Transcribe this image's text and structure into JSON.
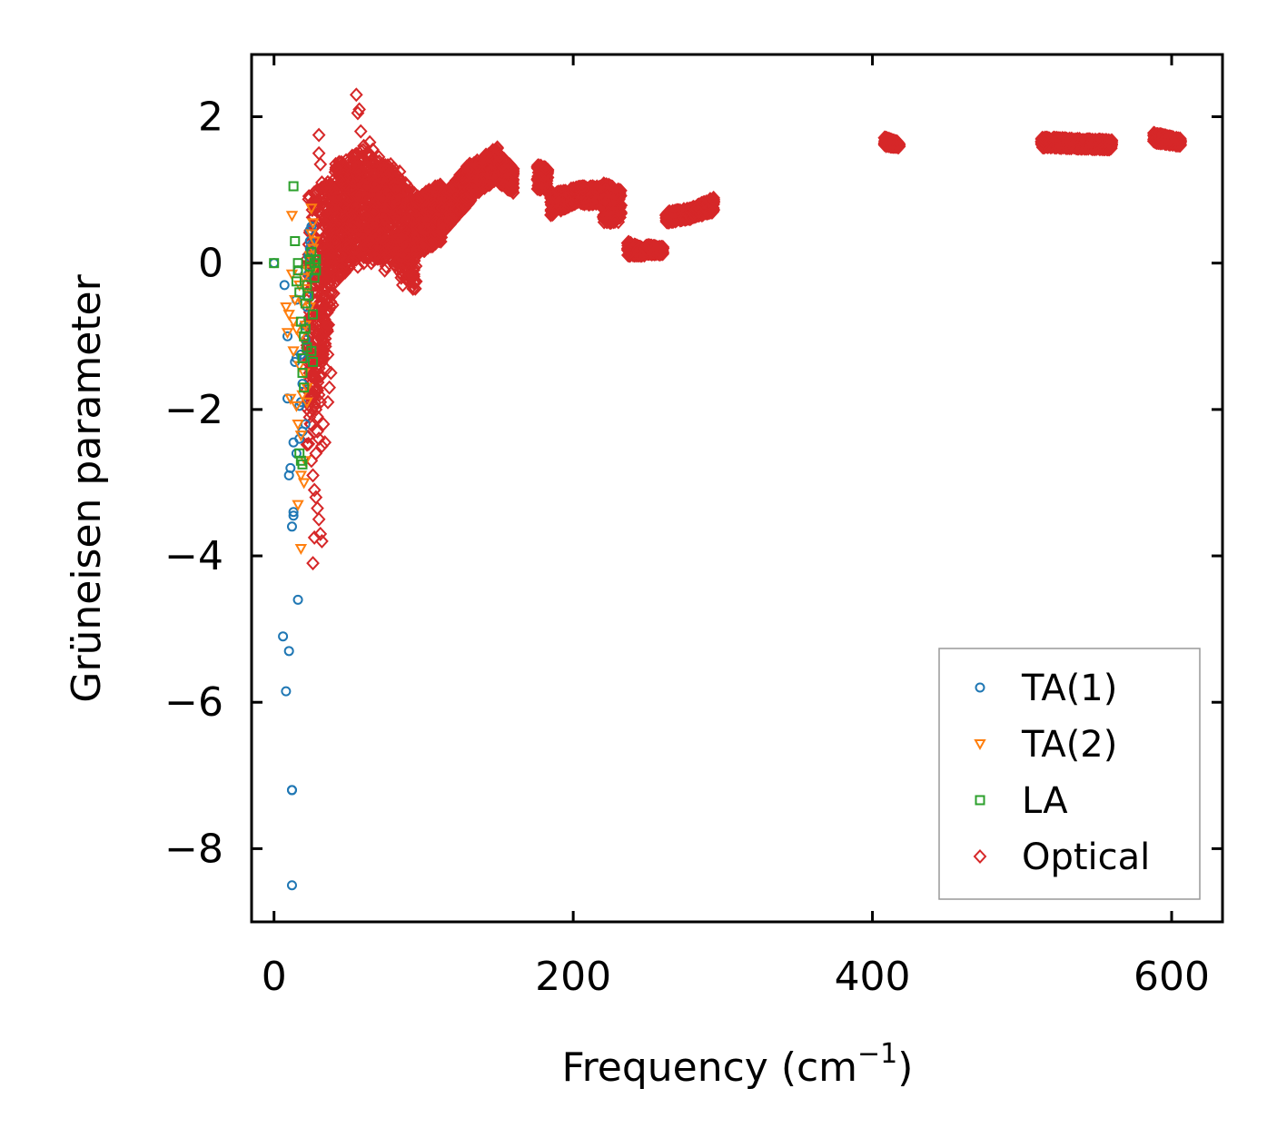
{
  "chart_data": {
    "type": "scatter",
    "title": "",
    "xlabel": "Frequency (cm",
    "xlabel_sup": "−1",
    "xlabel_end": ")",
    "ylabel": "Grüneisen parameter",
    "xlim": [
      -15,
      634
    ],
    "ylim": [
      -9.0,
      2.85
    ],
    "xticks": [
      0,
      200,
      400,
      600
    ],
    "xtick_labels": [
      "0",
      "200",
      "400",
      "600"
    ],
    "yticks": [
      2,
      0,
      -2,
      -4,
      -6,
      -8
    ],
    "ytick_labels": [
      "2",
      "0",
      "−2",
      "−4",
      "−6",
      "−8"
    ],
    "grid": false,
    "legend_position": "lower-right",
    "series": [
      {
        "name": "TA(1)",
        "marker": "circle",
        "color": "#1f77b4",
        "x": [
          0,
          7,
          9,
          9,
          10,
          11,
          12,
          13,
          13,
          13,
          14,
          15,
          15,
          15,
          16,
          17,
          17,
          18,
          18,
          19,
          19,
          20,
          20,
          21,
          21,
          22,
          22,
          23,
          23,
          24,
          24,
          24,
          25,
          25,
          25,
          6,
          10,
          8,
          16,
          12,
          12,
          12
        ],
        "y": [
          0,
          -0.3,
          -1.0,
          -1.85,
          -2.9,
          -2.8,
          -3.6,
          -3.45,
          -3.4,
          -2.45,
          -1.35,
          -2.6,
          -0.5,
          -1.3,
          -0.1,
          -2.4,
          -1.95,
          -1.9,
          -1.25,
          -1.65,
          -2.3,
          -1.3,
          -0.85,
          -2.2,
          -1.05,
          -0.6,
          -0.45,
          -0.15,
          0.1,
          0.2,
          0.3,
          0.45,
          0.15,
          0.25,
          0.5,
          -5.1,
          -5.3,
          -5.85,
          -4.6,
          -7.2,
          -7.2,
          -8.5
        ]
      },
      {
        "name": "TA(2)",
        "marker": "triangle-down",
        "color": "#ff7f0e",
        "x": [
          8,
          9,
          10,
          11,
          12,
          12,
          13,
          14,
          15,
          15,
          16,
          17,
          17,
          18,
          18,
          19,
          19,
          20,
          20,
          21,
          21,
          22,
          22,
          23,
          24,
          24,
          25,
          25,
          26,
          26,
          27,
          27,
          13,
          16,
          18,
          20,
          22,
          18
        ],
        "y": [
          -0.6,
          -0.95,
          -0.7,
          -1.85,
          -0.15,
          0.65,
          -0.8,
          -0.5,
          -1.95,
          -0.9,
          -3.3,
          -1.4,
          -0.3,
          -2.35,
          -1.0,
          -0.55,
          -1.8,
          -0.2,
          -1.5,
          -0.85,
          -2.7,
          -0.35,
          -1.9,
          -0.1,
          0.1,
          -0.6,
          0.4,
          0.75,
          0.2,
          0.55,
          -0.05,
          0.3,
          -1.2,
          -2.2,
          -2.9,
          -3.0,
          -1.7,
          -3.9
        ]
      },
      {
        "name": "LA",
        "marker": "square",
        "color": "#2ca02c",
        "x": [
          0,
          13,
          14,
          15,
          16,
          16,
          17,
          18,
          19,
          19,
          20,
          21,
          21,
          22,
          23,
          24,
          24,
          25,
          26,
          27,
          27,
          28,
          28,
          22,
          20,
          19,
          18,
          17,
          25,
          26
        ],
        "y": [
          0,
          1.05,
          0.3,
          -0.25,
          -0.1,
          0.0,
          -0.4,
          -0.8,
          -1.3,
          -2.75,
          -1.7,
          -0.55,
          -0.9,
          -0.3,
          -0.45,
          0.05,
          -0.05,
          0.15,
          -0.7,
          0.0,
          -0.2,
          0.05,
          -0.1,
          -1.15,
          -1.0,
          -1.5,
          -2.7,
          -2.6,
          -1.2,
          -1.35
        ]
      },
      {
        "name": "Optical",
        "marker": "diamond",
        "color": "#d62728",
        "x": [],
        "y": [],
        "band_segments": [
          {
            "x0": 22,
            "x1": 40,
            "ylo0": -2.6,
            "yhi0": 0.9,
            "ylo1": -0.5,
            "yhi1": 1.2
          },
          {
            "x0": 40,
            "x1": 60,
            "ylo0": -0.3,
            "yhi0": 1.35,
            "ylo1": 0.15,
            "yhi1": 1.55
          },
          {
            "x0": 60,
            "x1": 80,
            "ylo0": 0.05,
            "yhi0": 1.55,
            "ylo1": 0.05,
            "yhi1": 1.3
          },
          {
            "x0": 80,
            "x1": 95,
            "ylo0": -0.1,
            "yhi0": 1.25,
            "ylo1": -0.4,
            "yhi1": 0.95
          },
          {
            "x0": 95,
            "x1": 112,
            "ylo0": 0.1,
            "yhi0": 0.9,
            "ylo1": 0.3,
            "yhi1": 1.1
          },
          {
            "x0": 112,
            "x1": 132,
            "ylo0": 0.4,
            "yhi0": 0.9,
            "ylo1": 0.85,
            "yhi1": 1.4
          },
          {
            "x0": 132,
            "x1": 150,
            "ylo0": 0.9,
            "yhi0": 1.35,
            "ylo1": 1.15,
            "yhi1": 1.6
          },
          {
            "x0": 150,
            "x1": 160,
            "ylo0": 1.1,
            "yhi0": 1.5,
            "ylo1": 0.95,
            "yhi1": 1.3
          },
          {
            "x0": 176,
            "x1": 183,
            "ylo0": 1.0,
            "yhi0": 1.35,
            "ylo1": 1.0,
            "yhi1": 1.3
          },
          {
            "x0": 185,
            "x1": 205,
            "ylo0": 0.65,
            "yhi0": 0.95,
            "ylo1": 0.85,
            "yhi1": 1.05
          },
          {
            "x0": 205,
            "x1": 220,
            "ylo0": 0.8,
            "yhi0": 1.05,
            "ylo1": 0.8,
            "yhi1": 1.05
          },
          {
            "x0": 220,
            "x1": 232,
            "ylo0": 0.55,
            "yhi0": 1.1,
            "ylo1": 0.55,
            "yhi1": 1.0
          },
          {
            "x0": 236,
            "x1": 248,
            "ylo0": 0.1,
            "yhi0": 0.3,
            "ylo1": 0.1,
            "yhi1": 0.2
          },
          {
            "x0": 248,
            "x1": 260,
            "ylo0": 0.12,
            "yhi0": 0.25,
            "ylo1": 0.12,
            "yhi1": 0.22
          },
          {
            "x0": 262,
            "x1": 278,
            "ylo0": 0.55,
            "yhi0": 0.7,
            "ylo1": 0.6,
            "yhi1": 0.75
          },
          {
            "x0": 278,
            "x1": 294,
            "ylo0": 0.6,
            "yhi0": 0.75,
            "ylo1": 0.7,
            "yhi1": 0.9
          },
          {
            "x0": 408,
            "x1": 418,
            "ylo0": 1.6,
            "yhi0": 1.72,
            "ylo1": 1.58,
            "yhi1": 1.65
          },
          {
            "x0": 513,
            "x1": 560,
            "ylo0": 1.58,
            "yhi0": 1.72,
            "ylo1": 1.55,
            "yhi1": 1.68
          },
          {
            "x0": 588,
            "x1": 606,
            "ylo0": 1.65,
            "yhi0": 1.78,
            "ylo1": 1.6,
            "yhi1": 1.7
          }
        ],
        "outlier_x": [
          30,
          30,
          31,
          32,
          33,
          34,
          27,
          28,
          29,
          30,
          31,
          32,
          33,
          34,
          35,
          36,
          37,
          38,
          25,
          26,
          27,
          28,
          29,
          30,
          31,
          32,
          28,
          29,
          30,
          31,
          32,
          33,
          34,
          26,
          27,
          36,
          55,
          56,
          57,
          58,
          60,
          62,
          64,
          66,
          68,
          70,
          72,
          74,
          76,
          78,
          80,
          84,
          48,
          52,
          56,
          60,
          66,
          74,
          82,
          86,
          44,
          50,
          65,
          75,
          85,
          95,
          100,
          105
        ],
        "outlier_y": [
          1.75,
          1.5,
          1.35,
          1.1,
          -0.2,
          -0.6,
          -1.75,
          -2.0,
          -2.3,
          -2.4,
          -1.9,
          -2.5,
          -2.2,
          -2.45,
          -1.45,
          -1.9,
          -1.7,
          -1.5,
          -2.7,
          -2.9,
          -3.1,
          -3.2,
          -3.35,
          -3.5,
          -3.7,
          -3.8,
          -2.6,
          -2.1,
          -1.8,
          -1.55,
          -1.3,
          -1.05,
          -0.85,
          -4.1,
          -3.75,
          -1.25,
          2.3,
          2.05,
          2.1,
          1.8,
          1.6,
          1.5,
          1.65,
          1.55,
          1.4,
          1.45,
          1.35,
          1.3,
          1.25,
          1.35,
          1.3,
          1.25,
          0.0,
          0.05,
          -0.05,
          0.0,
          0.05,
          -0.1,
          0.0,
          -0.3,
          0.1,
          0.2,
          0.0,
          -0.05,
          -0.2,
          -0.25,
          0.2,
          0.3
        ]
      }
    ]
  }
}
